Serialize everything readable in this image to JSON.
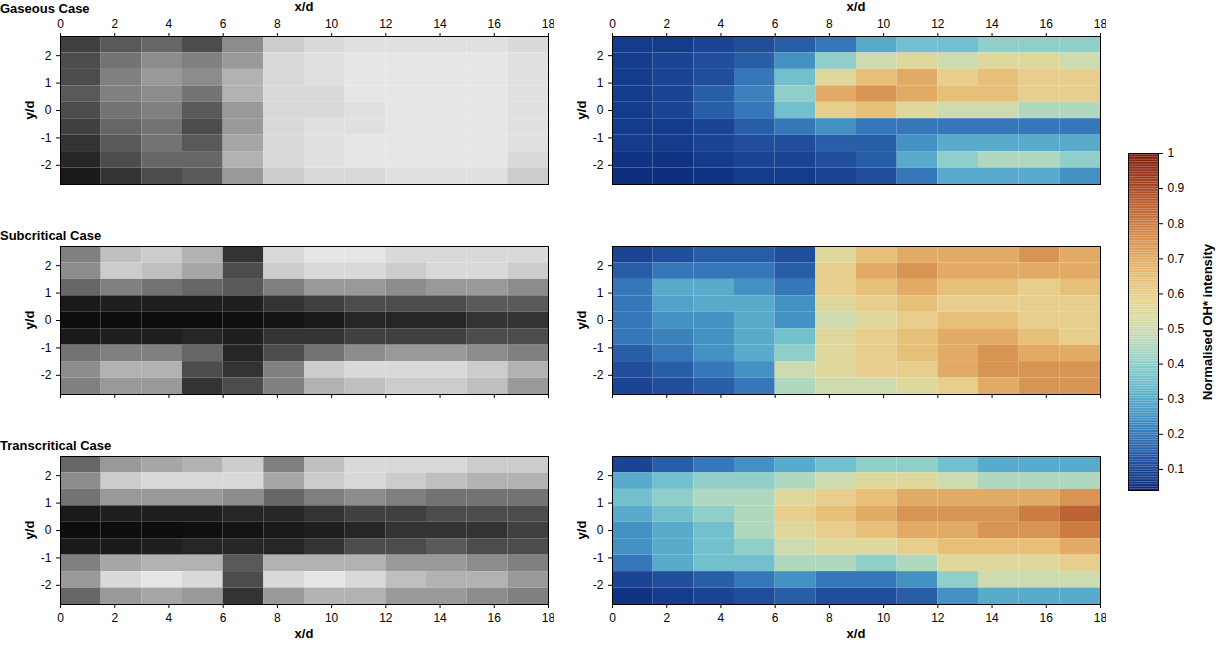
{
  "chart_data": [
    {
      "type": "heatmap",
      "title": "Gaseous Case",
      "xlabel": "x/d",
      "ylabel": "y/d",
      "xlim": [
        0,
        18
      ],
      "ylim": [
        -2.7,
        2.7
      ],
      "xticks": [
        0,
        2,
        4,
        6,
        8,
        10,
        12,
        14,
        16,
        18
      ],
      "yticks": [
        -2,
        -1,
        0,
        1,
        2
      ],
      "colors": [
        "#000000",
        "#ffffff"
      ],
      "color_range": [
        0,
        1
      ],
      "x": [
        0.75,
        2.25,
        3.75,
        5.25,
        6.75,
        8.25,
        9.75,
        11.25,
        12.75,
        14.25,
        15.75,
        17.25
      ],
      "y": [
        2.4,
        1.8,
        1.2,
        0.6,
        0,
        -0.6,
        -1.2,
        -1.8,
        -2.4
      ],
      "cells": [
        [
          0.25,
          0.35,
          0.4,
          0.3,
          0.55,
          0.8,
          0.85,
          0.88,
          0.88,
          0.88,
          0.88,
          0.85
        ],
        [
          0.3,
          0.45,
          0.55,
          0.5,
          0.6,
          0.85,
          0.88,
          0.9,
          0.9,
          0.9,
          0.9,
          0.88
        ],
        [
          0.3,
          0.5,
          0.6,
          0.55,
          0.7,
          0.85,
          0.88,
          0.9,
          0.9,
          0.9,
          0.9,
          0.88
        ],
        [
          0.35,
          0.5,
          0.55,
          0.45,
          0.7,
          0.85,
          0.85,
          0.9,
          0.9,
          0.9,
          0.9,
          0.88
        ],
        [
          0.3,
          0.45,
          0.5,
          0.35,
          0.6,
          0.85,
          0.85,
          0.88,
          0.9,
          0.9,
          0.9,
          0.88
        ],
        [
          0.25,
          0.4,
          0.45,
          0.3,
          0.6,
          0.85,
          0.88,
          0.88,
          0.9,
          0.9,
          0.9,
          0.88
        ],
        [
          0.2,
          0.35,
          0.45,
          0.35,
          0.65,
          0.85,
          0.88,
          0.9,
          0.9,
          0.9,
          0.9,
          0.88
        ],
        [
          0.15,
          0.3,
          0.4,
          0.4,
          0.7,
          0.85,
          0.88,
          0.9,
          0.9,
          0.9,
          0.9,
          0.85
        ],
        [
          0.1,
          0.2,
          0.3,
          0.35,
          0.6,
          0.8,
          0.85,
          0.85,
          0.88,
          0.88,
          0.88,
          0.8
        ]
      ]
    },
    {
      "type": "heatmap",
      "xlabel": "x/d",
      "ylabel": "y/d",
      "xlim": [
        0,
        18
      ],
      "ylim": [
        -2.7,
        2.7
      ],
      "xticks": [
        0,
        2,
        4,
        6,
        8,
        10,
        12,
        14,
        16,
        18
      ],
      "yticks": [
        -2,
        -1,
        0,
        1,
        2
      ],
      "colors": [
        "#0b2a7a",
        "#2a5fb0",
        "#4aa6cc",
        "#8cd3d0",
        "#e3e2a8",
        "#ebc77e",
        "#d9904c",
        "#b5532a",
        "#7a1c0c"
      ],
      "color_range": [
        0.04,
        1
      ],
      "x": [
        0.75,
        2.25,
        3.75,
        5.25,
        6.75,
        8.25,
        9.75,
        11.25,
        12.75,
        14.25,
        15.75,
        17.25
      ],
      "y": [
        2.4,
        1.8,
        1.2,
        0.6,
        0,
        -0.6,
        -1.2,
        -1.8,
        -2.4
      ],
      "cells": [
        [
          0.08,
          0.08,
          0.1,
          0.12,
          0.15,
          0.2,
          0.3,
          0.35,
          0.35,
          0.4,
          0.4,
          0.4
        ],
        [
          0.08,
          0.1,
          0.12,
          0.15,
          0.25,
          0.4,
          0.5,
          0.55,
          0.5,
          0.55,
          0.55,
          0.5
        ],
        [
          0.08,
          0.1,
          0.12,
          0.2,
          0.35,
          0.55,
          0.65,
          0.7,
          0.6,
          0.65,
          0.6,
          0.6
        ],
        [
          0.08,
          0.1,
          0.15,
          0.22,
          0.4,
          0.7,
          0.75,
          0.7,
          0.65,
          0.65,
          0.6,
          0.6
        ],
        [
          0.08,
          0.1,
          0.15,
          0.2,
          0.35,
          0.6,
          0.65,
          0.55,
          0.5,
          0.5,
          0.45,
          0.45
        ],
        [
          0.08,
          0.08,
          0.1,
          0.15,
          0.2,
          0.25,
          0.2,
          0.2,
          0.2,
          0.2,
          0.2,
          0.2
        ],
        [
          0.08,
          0.08,
          0.1,
          0.12,
          0.12,
          0.15,
          0.15,
          0.25,
          0.3,
          0.3,
          0.3,
          0.3
        ],
        [
          0.06,
          0.06,
          0.08,
          0.1,
          0.1,
          0.12,
          0.15,
          0.3,
          0.4,
          0.45,
          0.45,
          0.4
        ],
        [
          0.05,
          0.05,
          0.06,
          0.08,
          0.08,
          0.1,
          0.12,
          0.2,
          0.3,
          0.3,
          0.3,
          0.25
        ]
      ]
    },
    {
      "type": "heatmap",
      "title": "Subcritical Case",
      "ylabel": "y/d",
      "tick_labels": "y",
      "xlim": [
        0,
        18
      ],
      "ylim": [
        -2.7,
        2.7
      ],
      "xticks": [
        0,
        2,
        4,
        6,
        8,
        10,
        12,
        14,
        16,
        18
      ],
      "yticks": [
        -2,
        -1,
        0,
        1,
        2
      ],
      "colors": [
        "#000000",
        "#ffffff"
      ],
      "color_range": [
        0,
        1
      ],
      "x": [
        0.75,
        2.25,
        3.75,
        5.25,
        6.75,
        8.25,
        9.75,
        11.25,
        12.75,
        14.25,
        15.75,
        17.25
      ],
      "y": [
        2.4,
        1.8,
        1.2,
        0.6,
        0,
        -0.6,
        -1.2,
        -1.8,
        -2.4
      ],
      "cells": [
        [
          0.5,
          0.75,
          0.8,
          0.7,
          0.2,
          0.85,
          0.9,
          0.9,
          0.85,
          0.85,
          0.85,
          0.85
        ],
        [
          0.55,
          0.8,
          0.75,
          0.65,
          0.3,
          0.8,
          0.85,
          0.85,
          0.8,
          0.85,
          0.85,
          0.8
        ],
        [
          0.4,
          0.5,
          0.45,
          0.4,
          0.35,
          0.5,
          0.6,
          0.6,
          0.55,
          0.6,
          0.6,
          0.55
        ],
        [
          0.1,
          0.12,
          0.12,
          0.12,
          0.12,
          0.2,
          0.25,
          0.3,
          0.3,
          0.3,
          0.35,
          0.35
        ],
        [
          0.05,
          0.05,
          0.05,
          0.05,
          0.06,
          0.08,
          0.1,
          0.15,
          0.15,
          0.15,
          0.2,
          0.2
        ],
        [
          0.1,
          0.12,
          0.12,
          0.15,
          0.12,
          0.2,
          0.2,
          0.25,
          0.25,
          0.25,
          0.3,
          0.3
        ],
        [
          0.45,
          0.5,
          0.5,
          0.4,
          0.15,
          0.3,
          0.45,
          0.55,
          0.6,
          0.6,
          0.55,
          0.5
        ],
        [
          0.55,
          0.7,
          0.7,
          0.3,
          0.2,
          0.5,
          0.8,
          0.85,
          0.85,
          0.85,
          0.8,
          0.7
        ],
        [
          0.5,
          0.6,
          0.6,
          0.2,
          0.3,
          0.5,
          0.7,
          0.75,
          0.8,
          0.8,
          0.75,
          0.6
        ]
      ]
    },
    {
      "type": "heatmap",
      "ylabel": "y/d",
      "tick_labels": "y",
      "xlim": [
        0,
        18
      ],
      "ylim": [
        -2.7,
        2.7
      ],
      "xticks": [
        0,
        2,
        4,
        6,
        8,
        10,
        12,
        14,
        16,
        18
      ],
      "yticks": [
        -2,
        -1,
        0,
        1,
        2
      ],
      "colors": [
        "#0b2a7a",
        "#2a5fb0",
        "#4aa6cc",
        "#8cd3d0",
        "#e3e2a8",
        "#ebc77e",
        "#d9904c",
        "#b5532a",
        "#7a1c0c"
      ],
      "color_range": [
        0.04,
        1
      ],
      "x": [
        0.75,
        2.25,
        3.75,
        5.25,
        6.75,
        8.25,
        9.75,
        11.25,
        12.75,
        14.25,
        15.75,
        17.25
      ],
      "y": [
        2.4,
        1.8,
        1.2,
        0.6,
        0,
        -0.6,
        -1.2,
        -1.8,
        -2.4
      ],
      "cells": [
        [
          0.1,
          0.12,
          0.15,
          0.15,
          0.12,
          0.55,
          0.65,
          0.7,
          0.7,
          0.7,
          0.75,
          0.7
        ],
        [
          0.15,
          0.2,
          0.2,
          0.2,
          0.15,
          0.6,
          0.7,
          0.75,
          0.7,
          0.7,
          0.7,
          0.7
        ],
        [
          0.2,
          0.3,
          0.3,
          0.25,
          0.2,
          0.6,
          0.65,
          0.7,
          0.65,
          0.65,
          0.6,
          0.65
        ],
        [
          0.2,
          0.28,
          0.3,
          0.3,
          0.25,
          0.55,
          0.6,
          0.65,
          0.6,
          0.6,
          0.6,
          0.6
        ],
        [
          0.2,
          0.25,
          0.25,
          0.3,
          0.25,
          0.5,
          0.55,
          0.6,
          0.65,
          0.65,
          0.6,
          0.6
        ],
        [
          0.2,
          0.22,
          0.25,
          0.3,
          0.35,
          0.55,
          0.6,
          0.65,
          0.7,
          0.7,
          0.65,
          0.6
        ],
        [
          0.15,
          0.2,
          0.25,
          0.3,
          0.4,
          0.55,
          0.6,
          0.65,
          0.7,
          0.75,
          0.7,
          0.7
        ],
        [
          0.12,
          0.15,
          0.2,
          0.25,
          0.5,
          0.55,
          0.6,
          0.6,
          0.7,
          0.75,
          0.75,
          0.75
        ],
        [
          0.1,
          0.12,
          0.15,
          0.2,
          0.45,
          0.5,
          0.5,
          0.55,
          0.6,
          0.7,
          0.75,
          0.75
        ]
      ]
    },
    {
      "type": "heatmap",
      "title": "Transcritical Case",
      "xlabel": "x/d",
      "ylabel": "y/d",
      "xlim": [
        0,
        18
      ],
      "ylim": [
        -2.7,
        2.7
      ],
      "xticks": [
        0,
        2,
        4,
        6,
        8,
        10,
        12,
        14,
        16,
        18
      ],
      "yticks": [
        -2,
        -1,
        0,
        1,
        2
      ],
      "colors": [
        "#000000",
        "#ffffff"
      ],
      "color_range": [
        0,
        1
      ],
      "x": [
        0.75,
        2.25,
        3.75,
        5.25,
        6.75,
        8.25,
        9.75,
        11.25,
        12.75,
        14.25,
        15.75,
        17.25
      ],
      "y": [
        2.4,
        1.8,
        1.2,
        0.6,
        0,
        -0.6,
        -1.2,
        -1.8,
        -2.4
      ],
      "cells": [
        [
          0.4,
          0.6,
          0.65,
          0.7,
          0.8,
          0.5,
          0.75,
          0.85,
          0.85,
          0.85,
          0.8,
          0.8
        ],
        [
          0.55,
          0.8,
          0.85,
          0.85,
          0.85,
          0.65,
          0.8,
          0.85,
          0.8,
          0.75,
          0.7,
          0.7
        ],
        [
          0.45,
          0.6,
          0.6,
          0.6,
          0.55,
          0.4,
          0.5,
          0.55,
          0.5,
          0.45,
          0.45,
          0.45
        ],
        [
          0.1,
          0.12,
          0.12,
          0.12,
          0.15,
          0.15,
          0.2,
          0.25,
          0.25,
          0.3,
          0.3,
          0.3
        ],
        [
          0.05,
          0.05,
          0.05,
          0.06,
          0.08,
          0.1,
          0.12,
          0.15,
          0.2,
          0.2,
          0.2,
          0.25
        ],
        [
          0.1,
          0.1,
          0.12,
          0.15,
          0.15,
          0.15,
          0.2,
          0.3,
          0.3,
          0.35,
          0.3,
          0.3
        ],
        [
          0.5,
          0.65,
          0.7,
          0.7,
          0.35,
          0.7,
          0.7,
          0.7,
          0.6,
          0.6,
          0.55,
          0.5
        ],
        [
          0.6,
          0.85,
          0.9,
          0.85,
          0.3,
          0.85,
          0.9,
          0.85,
          0.75,
          0.7,
          0.7,
          0.6
        ],
        [
          0.4,
          0.6,
          0.65,
          0.6,
          0.2,
          0.6,
          0.7,
          0.7,
          0.6,
          0.6,
          0.55,
          0.5
        ]
      ]
    },
    {
      "type": "heatmap",
      "xlabel": "x/d",
      "ylabel": "y/d",
      "xlim": [
        0,
        18
      ],
      "ylim": [
        -2.7,
        2.7
      ],
      "xticks": [
        0,
        2,
        4,
        6,
        8,
        10,
        12,
        14,
        16,
        18
      ],
      "yticks": [
        -2,
        -1,
        0,
        1,
        2
      ],
      "colors": [
        "#0b2a7a",
        "#2a5fb0",
        "#4aa6cc",
        "#8cd3d0",
        "#e3e2a8",
        "#ebc77e",
        "#d9904c",
        "#b5532a",
        "#7a1c0c"
      ],
      "color_range": [
        0.04,
        1
      ],
      "x": [
        0.75,
        2.25,
        3.75,
        5.25,
        6.75,
        8.25,
        9.75,
        11.25,
        12.75,
        14.25,
        15.75,
        17.25
      ],
      "y": [
        2.4,
        1.8,
        1.2,
        0.6,
        0,
        -0.6,
        -1.2,
        -1.8,
        -2.4
      ],
      "cells": [
        [
          0.1,
          0.15,
          0.2,
          0.25,
          0.3,
          0.35,
          0.4,
          0.4,
          0.35,
          0.3,
          0.3,
          0.3
        ],
        [
          0.3,
          0.35,
          0.4,
          0.4,
          0.45,
          0.5,
          0.55,
          0.55,
          0.5,
          0.45,
          0.45,
          0.45
        ],
        [
          0.35,
          0.4,
          0.45,
          0.45,
          0.55,
          0.6,
          0.65,
          0.7,
          0.7,
          0.7,
          0.7,
          0.75
        ],
        [
          0.3,
          0.35,
          0.4,
          0.45,
          0.6,
          0.65,
          0.7,
          0.75,
          0.75,
          0.75,
          0.8,
          0.85
        ],
        [
          0.25,
          0.3,
          0.35,
          0.45,
          0.55,
          0.6,
          0.65,
          0.7,
          0.7,
          0.75,
          0.75,
          0.8
        ],
        [
          0.25,
          0.3,
          0.35,
          0.4,
          0.5,
          0.55,
          0.55,
          0.6,
          0.65,
          0.65,
          0.65,
          0.7
        ],
        [
          0.2,
          0.3,
          0.35,
          0.35,
          0.45,
          0.45,
          0.4,
          0.45,
          0.55,
          0.55,
          0.55,
          0.6
        ],
        [
          0.1,
          0.12,
          0.15,
          0.2,
          0.25,
          0.2,
          0.2,
          0.25,
          0.4,
          0.5,
          0.5,
          0.5
        ],
        [
          0.06,
          0.08,
          0.1,
          0.12,
          0.15,
          0.12,
          0.12,
          0.15,
          0.25,
          0.3,
          0.3,
          0.3
        ]
      ]
    },
    {
      "type": "colorbar",
      "label": "Normalised OH* intensity",
      "range": [
        0.04,
        1
      ],
      "ticks": [
        0.1,
        0.2,
        0.3,
        0.4,
        0.5,
        0.6,
        0.7,
        0.8,
        0.9,
        1
      ],
      "colors": [
        "#0b2a7a",
        "#2a5fb0",
        "#4aa6cc",
        "#8cd3d0",
        "#e3e2a8",
        "#ebc77e",
        "#d9904c",
        "#b5532a",
        "#7a1c0c"
      ]
    }
  ]
}
